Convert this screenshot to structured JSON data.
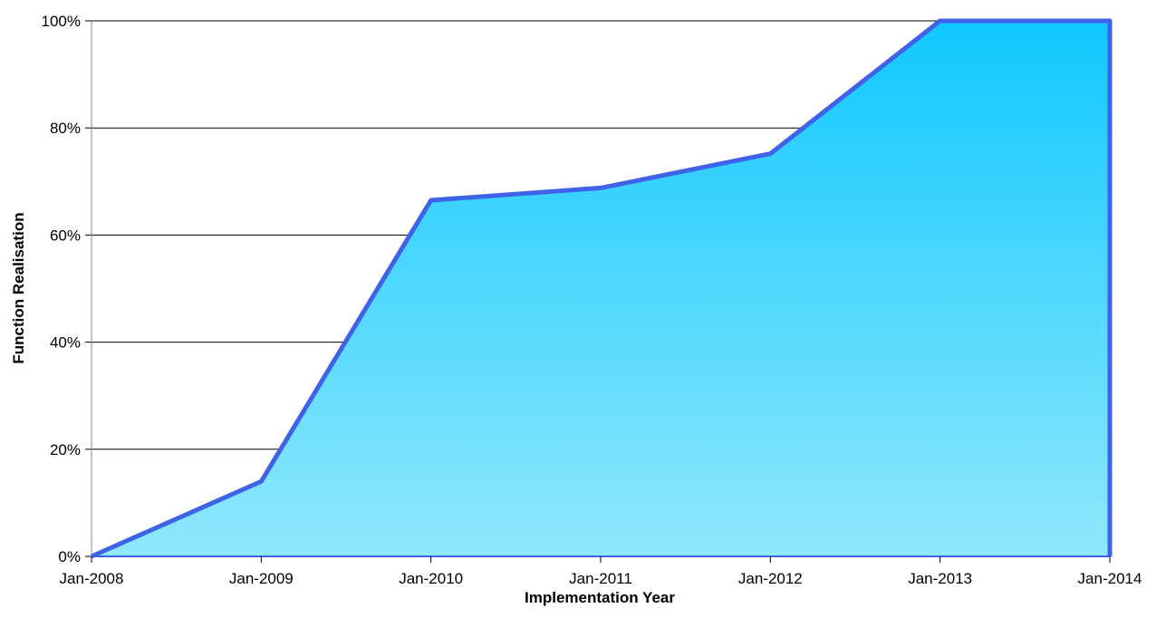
{
  "chart_data": {
    "type": "area",
    "title": "",
    "xlabel": "Implementation Year",
    "ylabel": "Function Realisation",
    "x": [
      "Jan-2008",
      "Jan-2009",
      "Jan-2010",
      "Jan-2011",
      "Jan-2012",
      "Jan-2013",
      "Jan-2014"
    ],
    "series": [
      {
        "values": [
          0,
          14,
          66.5,
          68.8,
          75.2,
          100,
          100
        ]
      }
    ],
    "yticks": [
      "0%",
      "20%",
      "40%",
      "60%",
      "80%",
      "100%"
    ],
    "ylim": [
      0,
      100
    ],
    "y_unit": "%",
    "grid": true,
    "legend": "none",
    "colors": {
      "line": "#3f63e8",
      "fill_top": "#10c8ff",
      "fill_bottom": "#90e8fc",
      "grid": "#000000",
      "axis": "#888888"
    }
  }
}
